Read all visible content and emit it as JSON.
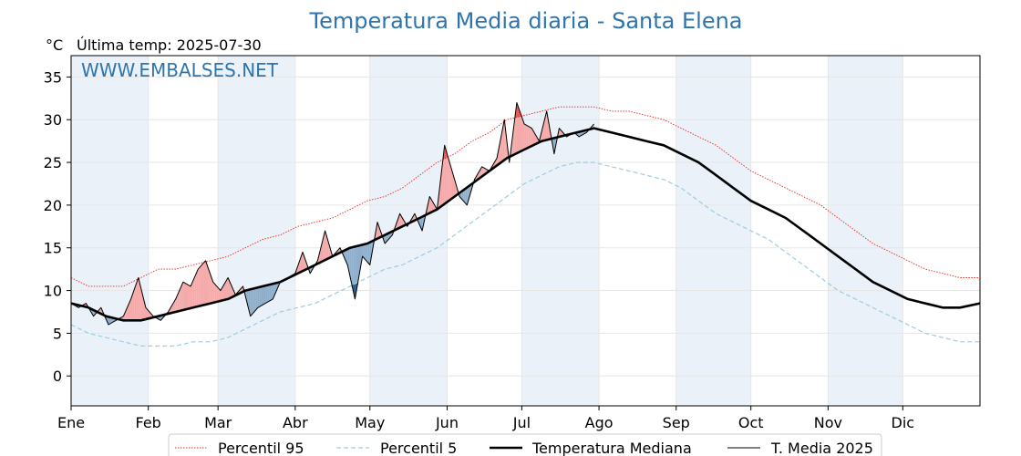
{
  "chart_data": {
    "type": "line",
    "title": "Temperatura Media diaria - Santa Elena",
    "unit_label": "°C",
    "last_temp_label": "Última temp: 2025-07-30",
    "watermark": "WWW.EMBALSES.NET",
    "ylim": [
      -3.5,
      37.5
    ],
    "yticks": [
      0,
      5,
      10,
      15,
      20,
      25,
      30,
      35
    ],
    "xlim": [
      1,
      366
    ],
    "month_labels": [
      "Ene",
      "Feb",
      "Mar",
      "Abr",
      "May",
      "Jun",
      "Jul",
      "Ago",
      "Sep",
      "Oct",
      "Nov",
      "Dic"
    ],
    "month_start_days": [
      1,
      32,
      60,
      91,
      121,
      152,
      182,
      213,
      244,
      274,
      305,
      335
    ],
    "grid": true,
    "legend_position": "bottom",
    "colors": {
      "p95": "#e8281e",
      "p5": "#9ccde0",
      "median": "#000000",
      "current": "#000000",
      "above_fill": "#f4aaaa",
      "above_fill_strong": "#ee5555",
      "below_fill": "#8eaecb",
      "below_fill_strong": "#2a5d8f",
      "band": "#eaf1f8",
      "title": "#2f74ad"
    },
    "series": [
      {
        "name": "Percentil 95",
        "key": "p95",
        "style": "dotted",
        "points": [
          [
            1,
            11.5
          ],
          [
            8,
            10.5
          ],
          [
            15,
            10.5
          ],
          [
            22,
            10.5
          ],
          [
            29,
            11.5
          ],
          [
            36,
            12.5
          ],
          [
            43,
            12.5
          ],
          [
            50,
            13
          ],
          [
            57,
            13.5
          ],
          [
            64,
            14
          ],
          [
            71,
            15
          ],
          [
            78,
            16
          ],
          [
            85,
            16.5
          ],
          [
            92,
            17.5
          ],
          [
            99,
            18
          ],
          [
            106,
            18.5
          ],
          [
            113,
            19.5
          ],
          [
            120,
            20.5
          ],
          [
            127,
            21
          ],
          [
            134,
            22
          ],
          [
            141,
            23.5
          ],
          [
            148,
            25
          ],
          [
            155,
            26
          ],
          [
            162,
            27.5
          ],
          [
            169,
            28.5
          ],
          [
            176,
            30
          ],
          [
            183,
            30.5
          ],
          [
            190,
            31
          ],
          [
            197,
            31.5
          ],
          [
            204,
            31.5
          ],
          [
            211,
            31.5
          ],
          [
            218,
            31
          ],
          [
            225,
            31
          ],
          [
            232,
            30.5
          ],
          [
            239,
            30
          ],
          [
            246,
            29
          ],
          [
            253,
            28
          ],
          [
            260,
            27
          ],
          [
            267,
            25.5
          ],
          [
            274,
            24
          ],
          [
            281,
            23
          ],
          [
            288,
            22
          ],
          [
            295,
            21
          ],
          [
            302,
            20
          ],
          [
            309,
            18.5
          ],
          [
            316,
            17
          ],
          [
            323,
            15.5
          ],
          [
            330,
            14.5
          ],
          [
            337,
            13.5
          ],
          [
            344,
            12.5
          ],
          [
            351,
            12
          ],
          [
            358,
            11.5
          ],
          [
            366,
            11.5
          ]
        ]
      },
      {
        "name": "Percentil 5",
        "key": "p5",
        "style": "dashed",
        "points": [
          [
            1,
            6
          ],
          [
            8,
            5
          ],
          [
            15,
            4.5
          ],
          [
            22,
            4
          ],
          [
            29,
            3.5
          ],
          [
            36,
            3.5
          ],
          [
            43,
            3.5
          ],
          [
            50,
            4
          ],
          [
            57,
            4
          ],
          [
            64,
            4.5
          ],
          [
            71,
            5.5
          ],
          [
            78,
            6.5
          ],
          [
            85,
            7.5
          ],
          [
            92,
            8
          ],
          [
            99,
            8.5
          ],
          [
            106,
            9.5
          ],
          [
            113,
            10.5
          ],
          [
            120,
            11.5
          ],
          [
            127,
            12.5
          ],
          [
            134,
            13
          ],
          [
            141,
            14
          ],
          [
            148,
            15
          ],
          [
            155,
            16.5
          ],
          [
            162,
            18
          ],
          [
            169,
            19.5
          ],
          [
            176,
            21
          ],
          [
            183,
            22.5
          ],
          [
            190,
            23.5
          ],
          [
            197,
            24.5
          ],
          [
            204,
            25
          ],
          [
            211,
            25
          ],
          [
            218,
            24.5
          ],
          [
            225,
            24
          ],
          [
            232,
            23.5
          ],
          [
            239,
            23
          ],
          [
            246,
            22
          ],
          [
            253,
            20.5
          ],
          [
            260,
            19
          ],
          [
            267,
            18
          ],
          [
            274,
            17
          ],
          [
            281,
            16
          ],
          [
            288,
            14.5
          ],
          [
            295,
            13
          ],
          [
            302,
            11.5
          ],
          [
            309,
            10
          ],
          [
            316,
            9
          ],
          [
            323,
            8
          ],
          [
            330,
            7
          ],
          [
            337,
            6
          ],
          [
            344,
            5
          ],
          [
            351,
            4.5
          ],
          [
            358,
            4
          ],
          [
            366,
            4
          ]
        ]
      },
      {
        "name": "Temperatura Mediana",
        "key": "median",
        "style": "thick",
        "points": [
          [
            1,
            8.5
          ],
          [
            8,
            8
          ],
          [
            15,
            7
          ],
          [
            22,
            6.5
          ],
          [
            29,
            6.5
          ],
          [
            36,
            7
          ],
          [
            43,
            7.5
          ],
          [
            50,
            8
          ],
          [
            57,
            8.5
          ],
          [
            64,
            9
          ],
          [
            71,
            10
          ],
          [
            78,
            10.5
          ],
          [
            85,
            11
          ],
          [
            92,
            12
          ],
          [
            99,
            13
          ],
          [
            106,
            14
          ],
          [
            113,
            15
          ],
          [
            120,
            15.5
          ],
          [
            127,
            16.5
          ],
          [
            134,
            17.5
          ],
          [
            141,
            18.5
          ],
          [
            148,
            19.5
          ],
          [
            155,
            21
          ],
          [
            162,
            22.5
          ],
          [
            169,
            24
          ],
          [
            176,
            25.5
          ],
          [
            183,
            26.5
          ],
          [
            190,
            27.5
          ],
          [
            197,
            28
          ],
          [
            204,
            28.5
          ],
          [
            211,
            29
          ],
          [
            218,
            28.5
          ],
          [
            225,
            28
          ],
          [
            232,
            27.5
          ],
          [
            239,
            27
          ],
          [
            246,
            26
          ],
          [
            253,
            25
          ],
          [
            260,
            23.5
          ],
          [
            267,
            22
          ],
          [
            274,
            20.5
          ],
          [
            281,
            19.5
          ],
          [
            288,
            18.5
          ],
          [
            295,
            17
          ],
          [
            302,
            15.5
          ],
          [
            309,
            14
          ],
          [
            316,
            12.5
          ],
          [
            323,
            11
          ],
          [
            330,
            10
          ],
          [
            337,
            9
          ],
          [
            344,
            8.5
          ],
          [
            351,
            8
          ],
          [
            358,
            8
          ],
          [
            366,
            8.5
          ]
        ]
      },
      {
        "name": "T. Media 2025",
        "key": "current",
        "style": "thin",
        "points": [
          [
            1,
            8.5
          ],
          [
            4,
            8
          ],
          [
            7,
            8.5
          ],
          [
            10,
            7
          ],
          [
            13,
            8
          ],
          [
            16,
            6
          ],
          [
            19,
            6.5
          ],
          [
            22,
            7
          ],
          [
            25,
            9
          ],
          [
            28,
            11.5
          ],
          [
            31,
            8
          ],
          [
            34,
            7
          ],
          [
            37,
            6.5
          ],
          [
            40,
            7.5
          ],
          [
            43,
            9
          ],
          [
            46,
            11
          ],
          [
            49,
            10.5
          ],
          [
            52,
            12.5
          ],
          [
            55,
            13.5
          ],
          [
            58,
            11
          ],
          [
            61,
            10
          ],
          [
            64,
            11.5
          ],
          [
            67,
            9.5
          ],
          [
            70,
            10.5
          ],
          [
            73,
            7
          ],
          [
            76,
            8
          ],
          [
            79,
            8.5
          ],
          [
            82,
            9
          ],
          [
            85,
            11
          ],
          [
            88,
            11.5
          ],
          [
            91,
            12
          ],
          [
            94,
            14.5
          ],
          [
            97,
            12
          ],
          [
            100,
            13.5
          ],
          [
            103,
            17
          ],
          [
            106,
            14
          ],
          [
            109,
            15
          ],
          [
            112,
            13
          ],
          [
            115,
            9
          ],
          [
            118,
            14
          ],
          [
            121,
            13
          ],
          [
            124,
            18
          ],
          [
            127,
            15.5
          ],
          [
            130,
            16.5
          ],
          [
            133,
            19
          ],
          [
            136,
            17.5
          ],
          [
            139,
            19
          ],
          [
            142,
            17
          ],
          [
            145,
            21
          ],
          [
            148,
            19.5
          ],
          [
            151,
            27
          ],
          [
            154,
            24
          ],
          [
            157,
            21
          ],
          [
            160,
            20
          ],
          [
            163,
            23
          ],
          [
            166,
            24.5
          ],
          [
            169,
            24
          ],
          [
            172,
            25.5
          ],
          [
            175,
            30
          ],
          [
            177,
            25
          ],
          [
            180,
            32
          ],
          [
            183,
            29.5
          ],
          [
            186,
            29
          ],
          [
            189,
            27.5
          ],
          [
            192,
            31
          ],
          [
            195,
            26
          ],
          [
            197,
            29
          ],
          [
            200,
            28
          ],
          [
            203,
            28.5
          ],
          [
            205,
            28
          ],
          [
            208,
            28.5
          ],
          [
            211,
            29.5
          ]
        ]
      }
    ]
  }
}
